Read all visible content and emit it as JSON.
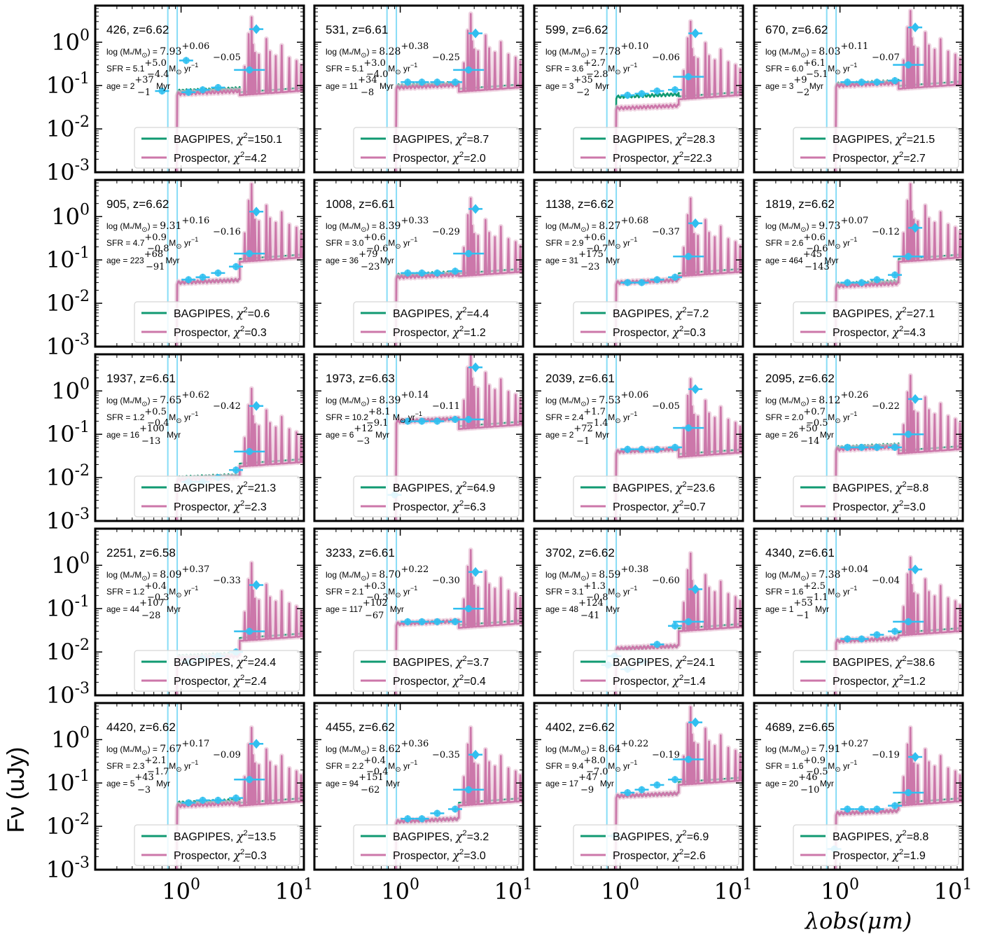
{
  "figure": {
    "ylabel": "Fν (uJy)",
    "xlabel": "λobs(μm)",
    "x_ticks": [
      "10⁰",
      "10¹"
    ],
    "y_ticks": [
      "10⁰",
      "10⁻¹",
      "10⁻²",
      "10⁻³"
    ],
    "colors": {
      "bagpipes": "#109a72",
      "prospector": "#cc77aa",
      "photometry": "#30bff0",
      "lines": "#87dcf6"
    }
  },
  "chart_data": {
    "type": "line",
    "xscale": "log",
    "yscale": "log",
    "xlim": [
      0.2,
      10
    ],
    "ylim": [
      0.001,
      7
    ],
    "legend_position": "lower right",
    "series_names": [
      "BAGPIPES",
      "Prospector"
    ],
    "panels": [
      {
        "title": "426, z=6.62",
        "mass": "7.93",
        "mass_up": "+0.06",
        "mass_lo": "−0.05",
        "sfr": "5.1",
        "sfr_up": "+5.0",
        "sfr_lo": "−4.4",
        "age": "2",
        "age_up": "+37",
        "age_lo": "−1",
        "chi_bag": "150.1",
        "chi_pro": "4.2",
        "cont_b": 0.075,
        "cont_p": 0.065,
        "redlev": 0.1,
        "phot": [
          [
            0.7,
            0.075
          ],
          [
            1.15,
            0.07
          ],
          [
            1.5,
            0.08
          ],
          [
            2.0,
            0.09
          ],
          [
            3.6,
            0.23
          ],
          [
            4.1,
            2.0
          ],
          [
            1.1,
            0.38
          ]
        ]
      },
      {
        "title": "531, z=6.61",
        "mass": "8.28",
        "mass_up": "+0.38",
        "mass_lo": "−0.25",
        "sfr": "5.1",
        "sfr_up": "+3.0",
        "sfr_lo": "−4.0",
        "age": "11",
        "age_up": "+34",
        "age_lo": "−8",
        "chi_bag": "8.7",
        "chi_pro": "2.0",
        "cont_b": 0.1,
        "cont_p": 0.09,
        "redlev": 0.12,
        "phot": [
          [
            1.15,
            0.12
          ],
          [
            1.5,
            0.12
          ],
          [
            2.0,
            0.12
          ],
          [
            2.8,
            0.12
          ],
          [
            3.6,
            0.23
          ],
          [
            4.1,
            1.6
          ]
        ]
      },
      {
        "title": "599, z=6.62",
        "mass": "7.78",
        "mass_up": "+0.10",
        "mass_lo": "−0.06",
        "sfr": "3.6",
        "sfr_up": "+2.7",
        "sfr_lo": "−2.8",
        "age": "3",
        "age_up": "+35",
        "age_lo": "−2",
        "chi_bag": "28.3",
        "chi_pro": "22.3",
        "cont_b": 0.055,
        "cont_p": 0.03,
        "redlev": 0.08,
        "phot": [
          [
            1.15,
            0.06
          ],
          [
            1.5,
            0.065
          ],
          [
            2.0,
            0.075
          ],
          [
            2.8,
            0.08
          ],
          [
            3.6,
            0.16
          ],
          [
            4.1,
            1.6
          ]
        ]
      },
      {
        "title": "670, z=6.62",
        "mass": "8.03",
        "mass_up": "+0.11",
        "mass_lo": "−0.07",
        "sfr": "6.0",
        "sfr_up": "+6.1",
        "sfr_lo": "−5.1",
        "age": "3",
        "age_up": "+9",
        "age_lo": "−2",
        "chi_bag": "21.5",
        "chi_pro": "2.7",
        "cont_b": 0.11,
        "cont_p": 0.1,
        "redlev": 0.14,
        "phot": [
          [
            1.15,
            0.12
          ],
          [
            1.5,
            0.12
          ],
          [
            2.0,
            0.12
          ],
          [
            2.8,
            0.13
          ],
          [
            3.6,
            0.3
          ],
          [
            4.1,
            2.2
          ]
        ]
      },
      {
        "title": "905, z=6.62",
        "mass": "9.31",
        "mass_up": "+0.16",
        "mass_lo": "−0.16",
        "sfr": "4.7",
        "sfr_up": "+0.9",
        "sfr_lo": "−0.8",
        "age": "223",
        "age_up": "+68",
        "age_lo": "−91",
        "chi_bag": "0.6",
        "chi_pro": "0.3",
        "cont_b": 0.03,
        "cont_p": 0.03,
        "redlev": 0.15,
        "phot": [
          [
            1.15,
            0.035
          ],
          [
            1.5,
            0.04
          ],
          [
            2.0,
            0.05
          ],
          [
            2.8,
            0.07
          ],
          [
            3.6,
            0.14
          ],
          [
            4.1,
            1.3
          ]
        ]
      },
      {
        "title": "1008, z=6.61",
        "mass": "8.39",
        "mass_up": "+0.33",
        "mass_lo": "−0.29",
        "sfr": "3.0",
        "sfr_up": "+0.6",
        "sfr_lo": "−0.6",
        "age": "36",
        "age_up": "+79",
        "age_lo": "−23",
        "chi_bag": "4.4",
        "chi_pro": "1.2",
        "cont_b": 0.045,
        "cont_p": 0.04,
        "redlev": 0.07,
        "phot": [
          [
            1.15,
            0.05
          ],
          [
            1.5,
            0.05
          ],
          [
            2.0,
            0.05
          ],
          [
            2.8,
            0.055
          ],
          [
            3.6,
            0.14
          ],
          [
            4.1,
            1.5
          ]
        ]
      },
      {
        "title": "1138, z=6.62",
        "mass": "8.27",
        "mass_up": "+0.68",
        "mass_lo": "−0.37",
        "sfr": "2.9",
        "sfr_up": "+0.6",
        "sfr_lo": "−0.7",
        "age": "31",
        "age_up": "+175",
        "age_lo": "−23",
        "chi_bag": "7.2",
        "chi_pro": "0.3",
        "cont_b": 0.03,
        "cont_p": 0.03,
        "redlev": 0.07,
        "phot": [
          [
            1.15,
            0.03
          ],
          [
            1.5,
            0.03
          ],
          [
            2.0,
            0.035
          ],
          [
            2.8,
            0.04
          ],
          [
            3.6,
            0.12
          ],
          [
            4.1,
            0.7
          ]
        ]
      },
      {
        "title": "1819, z=6.62",
        "mass": "9.73",
        "mass_up": "+0.07",
        "mass_lo": "−0.12",
        "sfr": "2.6",
        "sfr_up": "+0.6",
        "sfr_lo": "−0.6",
        "age": "464",
        "age_up": "+45",
        "age_lo": "−143",
        "chi_bag": "27.1",
        "chi_pro": "4.3",
        "cont_b": 0.028,
        "cont_p": 0.025,
        "redlev": 0.15,
        "phot": [
          [
            1.15,
            0.03
          ],
          [
            1.5,
            0.03
          ],
          [
            2.0,
            0.035
          ],
          [
            2.8,
            0.045
          ],
          [
            3.6,
            0.12
          ],
          [
            4.1,
            0.55
          ]
        ]
      },
      {
        "title": "1937, z=6.61",
        "mass": "7.65",
        "mass_up": "+0.62",
        "mass_lo": "−0.42",
        "sfr": "1.2",
        "sfr_up": "+0.5",
        "sfr_lo": "−0.4",
        "age": "16",
        "age_up": "+100",
        "age_lo": "−13",
        "chi_bag": "21.3",
        "chi_pro": "2.3",
        "cont_b": 0.01,
        "cont_p": 0.009,
        "redlev": 0.03,
        "phot": [
          [
            1.15,
            0.008
          ],
          [
            1.5,
            0.008
          ],
          [
            2.0,
            0.01
          ],
          [
            2.8,
            0.015
          ],
          [
            3.6,
            0.04
          ],
          [
            4.1,
            0.45
          ]
        ]
      },
      {
        "title": "1973, z=6.63",
        "mass": "8.39",
        "mass_up": "+0.14",
        "mass_lo": "−0.11",
        "sfr": "10.2",
        "sfr_up": "+8.1",
        "sfr_lo": "−9.1",
        "age": "6",
        "age_up": "+12",
        "age_lo": "−3",
        "chi_bag": "64.9",
        "chi_pro": "6.3",
        "cont_b": 0.2,
        "cont_p": 0.2,
        "redlev": 0.22,
        "phot": [
          [
            0.9,
            0.004
          ],
          [
            1.15,
            0.2
          ],
          [
            1.5,
            0.2
          ],
          [
            2.0,
            0.2
          ],
          [
            2.8,
            0.22
          ],
          [
            3.6,
            0.22
          ],
          [
            4.1,
            3.5
          ]
        ]
      },
      {
        "title": "2039, z=6.61",
        "mass": "7.53",
        "mass_up": "+0.06",
        "mass_lo": "−0.05",
        "sfr": "2.4",
        "sfr_up": "+1.7",
        "sfr_lo": "−1.4",
        "age": "2",
        "age_up": "+72",
        "age_lo": "−1",
        "chi_bag": "23.6",
        "chi_pro": "0.7",
        "cont_b": 0.04,
        "cont_p": 0.04,
        "redlev": 0.05,
        "phot": [
          [
            1.15,
            0.045
          ],
          [
            1.5,
            0.045
          ],
          [
            2.0,
            0.045
          ],
          [
            2.8,
            0.05
          ],
          [
            3.6,
            0.14
          ],
          [
            4.1,
            1.1
          ]
        ]
      },
      {
        "title": "2095, z=6.62",
        "mass": "8.12",
        "mass_up": "+0.26",
        "mass_lo": "−0.22",
        "sfr": "2.0",
        "sfr_up": "+0.7",
        "sfr_lo": "−0.5",
        "age": "26",
        "age_up": "+50",
        "age_lo": "−14",
        "chi_bag": "8.8",
        "chi_pro": "3.0",
        "cont_b": 0.05,
        "cont_p": 0.045,
        "redlev": 0.06,
        "phot": [
          [
            1.15,
            0.05
          ],
          [
            1.5,
            0.05
          ],
          [
            2.0,
            0.05
          ],
          [
            2.8,
            0.05
          ],
          [
            3.6,
            0.1
          ],
          [
            4.1,
            0.65
          ]
        ]
      },
      {
        "title": "2251, z=6.58",
        "mass": "8.09",
        "mass_up": "+0.37",
        "mass_lo": "−0.33",
        "sfr": "1.2",
        "sfr_up": "+0.4",
        "sfr_lo": "−0.3",
        "age": "44",
        "age_up": "+107",
        "age_lo": "−28",
        "chi_bag": "24.4",
        "chi_pro": "2.4",
        "cont_b": 0.008,
        "cont_p": 0.007,
        "redlev": 0.03,
        "phot": [
          [
            1.15,
            0.006
          ],
          [
            1.5,
            0.007
          ],
          [
            2.0,
            0.008
          ],
          [
            2.8,
            0.01
          ],
          [
            3.6,
            0.03
          ],
          [
            4.1,
            0.35
          ]
        ]
      },
      {
        "title": "3233, z=6.61",
        "mass": "8.70",
        "mass_up": "+0.22",
        "mass_lo": "−0.30",
        "sfr": "2.1",
        "sfr_up": "+0.3",
        "sfr_lo": "−0.3",
        "age": "117",
        "age_up": "+102",
        "age_lo": "−67",
        "chi_bag": "3.7",
        "chi_pro": "0.4",
        "cont_b": 0.045,
        "cont_p": 0.045,
        "redlev": 0.06,
        "phot": [
          [
            1.15,
            0.05
          ],
          [
            1.5,
            0.05
          ],
          [
            2.0,
            0.05
          ],
          [
            2.8,
            0.05
          ],
          [
            3.6,
            0.1
          ],
          [
            4.1,
            0.7
          ]
        ]
      },
      {
        "title": "3702, z=6.62",
        "mass": "8.59",
        "mass_up": "+0.38",
        "mass_lo": "−0.60",
        "sfr": "3.1",
        "sfr_up": "+1.3",
        "sfr_lo": "−0.8",
        "age": "48",
        "age_up": "+124",
        "age_lo": "−41",
        "chi_bag": "24.1",
        "chi_pro": "1.4",
        "cont_b": 0.012,
        "cont_p": 0.012,
        "redlev": 0.05,
        "phot": [
          [
            0.8,
            0.005
          ],
          [
            0.9,
            0.008
          ],
          [
            1.15,
            0.004
          ],
          [
            1.5,
            0.006
          ],
          [
            2.0,
            0.015
          ],
          [
            2.8,
            0.04
          ],
          [
            3.6,
            0.05
          ],
          [
            4.1,
            0.28
          ]
        ]
      },
      {
        "title": "4340, z=6.61",
        "mass": "7.38",
        "mass_up": "+0.04",
        "mass_lo": "−0.04",
        "sfr": "1.6",
        "sfr_up": "+2.5",
        "sfr_lo": "−1.1",
        "age": "1",
        "age_up": "+53",
        "age_lo": "−1",
        "chi_bag": "38.6",
        "chi_pro": "1.2",
        "cont_b": 0.018,
        "cont_p": 0.018,
        "redlev": 0.04,
        "phot": [
          [
            1.15,
            0.02
          ],
          [
            1.5,
            0.02
          ],
          [
            2.0,
            0.025
          ],
          [
            2.8,
            0.03
          ],
          [
            3.6,
            0.05
          ],
          [
            4.1,
            0.8
          ]
        ]
      },
      {
        "title": "4420, z=6.62",
        "mass": "7.67",
        "mass_up": "+0.17",
        "mass_lo": "−0.09",
        "sfr": "2.3",
        "sfr_up": "+2.1",
        "sfr_lo": "−1.7",
        "age": "5",
        "age_up": "+43",
        "age_lo": "−3",
        "chi_bag": "13.5",
        "chi_pro": "0.3",
        "cont_b": 0.035,
        "cont_p": 0.03,
        "redlev": 0.05,
        "phot": [
          [
            1.15,
            0.035
          ],
          [
            1.5,
            0.04
          ],
          [
            2.0,
            0.04
          ],
          [
            2.8,
            0.045
          ],
          [
            3.6,
            0.12
          ],
          [
            4.1,
            0.8
          ]
        ]
      },
      {
        "title": "4455, z=6.62",
        "mass": "8.62",
        "mass_up": "+0.36",
        "mass_lo": "−0.35",
        "sfr": "2.2",
        "sfr_up": "+0.4",
        "sfr_lo": "−0.4",
        "age": "94",
        "age_up": "+151",
        "age_lo": "−62",
        "chi_bag": "3.2",
        "chi_pro": "3.0",
        "cont_b": 0.013,
        "cont_p": 0.013,
        "redlev": 0.05,
        "phot": [
          [
            1.15,
            0.015
          ],
          [
            1.5,
            0.015
          ],
          [
            2.0,
            0.02
          ],
          [
            2.8,
            0.025
          ],
          [
            3.6,
            0.07
          ],
          [
            4.1,
            0.45
          ]
        ]
      },
      {
        "title": "4402, z=6.62",
        "mass": "8.64",
        "mass_up": "+0.22",
        "mass_lo": "−0.19",
        "sfr": "9.4",
        "sfr_up": "+8.0",
        "sfr_lo": "−7.0",
        "age": "17",
        "age_up": "+47",
        "age_lo": "−9",
        "chi_bag": "6.9",
        "chi_pro": "2.6",
        "cont_b": 0.05,
        "cont_p": 0.05,
        "redlev": 0.15,
        "phot": [
          [
            0.9,
            0.006
          ],
          [
            1.15,
            0.06
          ],
          [
            1.5,
            0.07
          ],
          [
            2.0,
            0.09
          ],
          [
            2.8,
            0.12
          ],
          [
            3.6,
            0.35
          ],
          [
            4.1,
            2.5
          ]
        ]
      },
      {
        "title": "4689, z=6.65",
        "mass": "7.91",
        "mass_up": "+0.27",
        "mass_lo": "−0.19",
        "sfr": "1.6",
        "sfr_up": "+0.9",
        "sfr_lo": "−0.5",
        "age": "20",
        "age_up": "+46",
        "age_lo": "−10",
        "chi_bag": "8.8",
        "chi_pro": "1.9",
        "cont_b": 0.02,
        "cont_p": 0.02,
        "redlev": 0.05,
        "phot": [
          [
            0.9,
            0.003
          ],
          [
            1.15,
            0.025
          ],
          [
            1.5,
            0.025
          ],
          [
            2.0,
            0.025
          ],
          [
            2.8,
            0.03
          ],
          [
            3.6,
            0.06
          ],
          [
            4.1,
            0.4
          ]
        ]
      }
    ]
  }
}
